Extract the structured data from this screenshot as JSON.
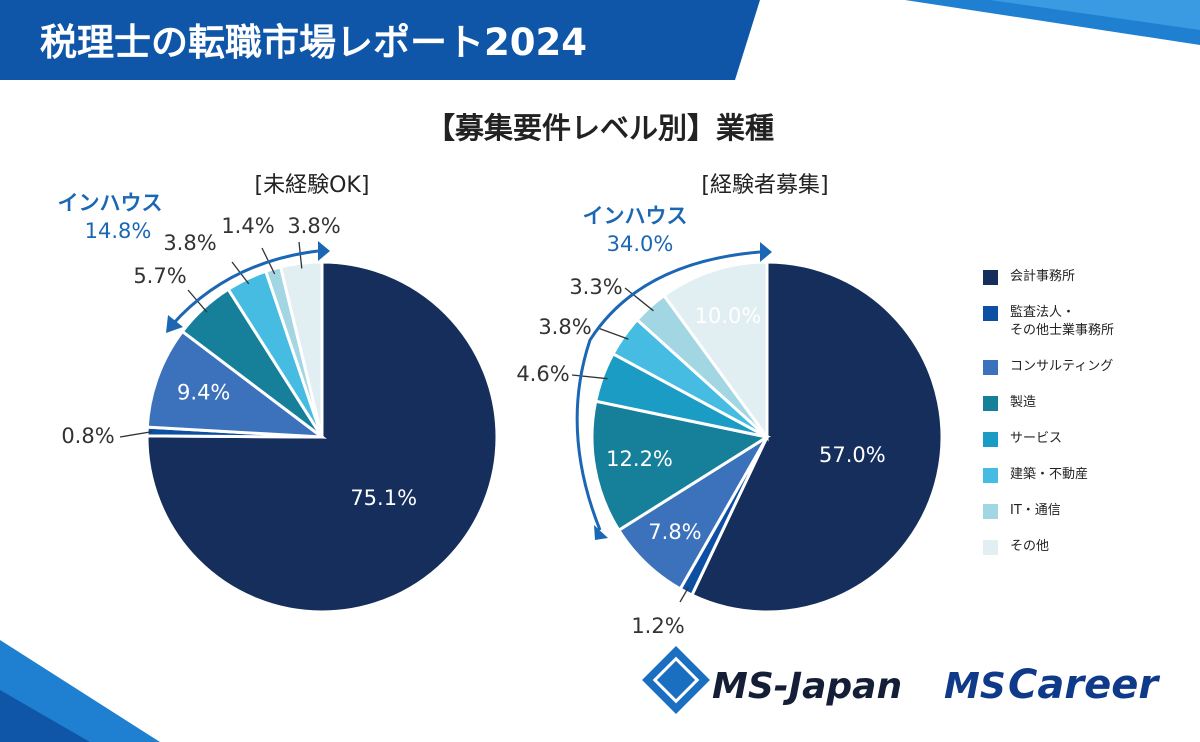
{
  "header": {
    "title": "税理士の転職市場レポート2024"
  },
  "subtitle": "【募集要件レベル別】業種",
  "colors": {
    "header_blue": "#0f56a8",
    "dark_navy": "#152e5c",
    "accent_blue": "#1b67b3"
  },
  "chart_data": [
    {
      "type": "pie",
      "title": "[未経験OK]",
      "categories": [
        "会計事務所",
        "監査法人・その他士業事務所",
        "コンサルティング",
        "製造",
        "サービス",
        "建築・不動産",
        "IT・通信",
        "その他"
      ],
      "values": [
        75.1,
        0.8,
        9.4,
        5.7,
        0.0,
        3.8,
        1.4,
        3.8
      ],
      "value_labels": [
        "75.1%",
        "0.8%",
        "9.4%",
        "5.7%",
        "",
        "3.8%",
        "1.4%",
        "3.8%"
      ],
      "annotation": {
        "label": "インハウス",
        "value": "14.8%"
      }
    },
    {
      "type": "pie",
      "title": "[経験者募集]",
      "categories": [
        "会計事務所",
        "監査法人・その他士業事務所",
        "コンサルティング",
        "製造",
        "サービス",
        "建築・不動産",
        "IT・通信",
        "その他"
      ],
      "values": [
        57.0,
        1.2,
        7.8,
        12.2,
        4.6,
        3.8,
        3.3,
        10.0
      ],
      "value_labels": [
        "57.0%",
        "1.2%",
        "7.8%",
        "12.2%",
        "4.6%",
        "3.8%",
        "3.3%",
        "10.0%"
      ],
      "annotation": {
        "label": "インハウス",
        "value": "34.0%"
      }
    }
  ],
  "legend": {
    "items": [
      {
        "label": "会計事務所",
        "color": "#152e5c"
      },
      {
        "label": "監査法人・\nその他士業事務所",
        "color": "#0c4fa3"
      },
      {
        "label": "コンサルティング",
        "color": "#3b72bb"
      },
      {
        "label": "製造",
        "color": "#167f9a"
      },
      {
        "label": "サービス",
        "color": "#1a9cc5"
      },
      {
        "label": "建築・不動産",
        "color": "#46bce3"
      },
      {
        "label": "IT・通信",
        "color": "#a3d6e3"
      },
      {
        "label": "その他",
        "color": "#e1eef2"
      }
    ]
  },
  "logos": {
    "ms_japan": "MS-Japan",
    "ms_career_ms": "MS",
    "ms_career_career": "Career"
  }
}
